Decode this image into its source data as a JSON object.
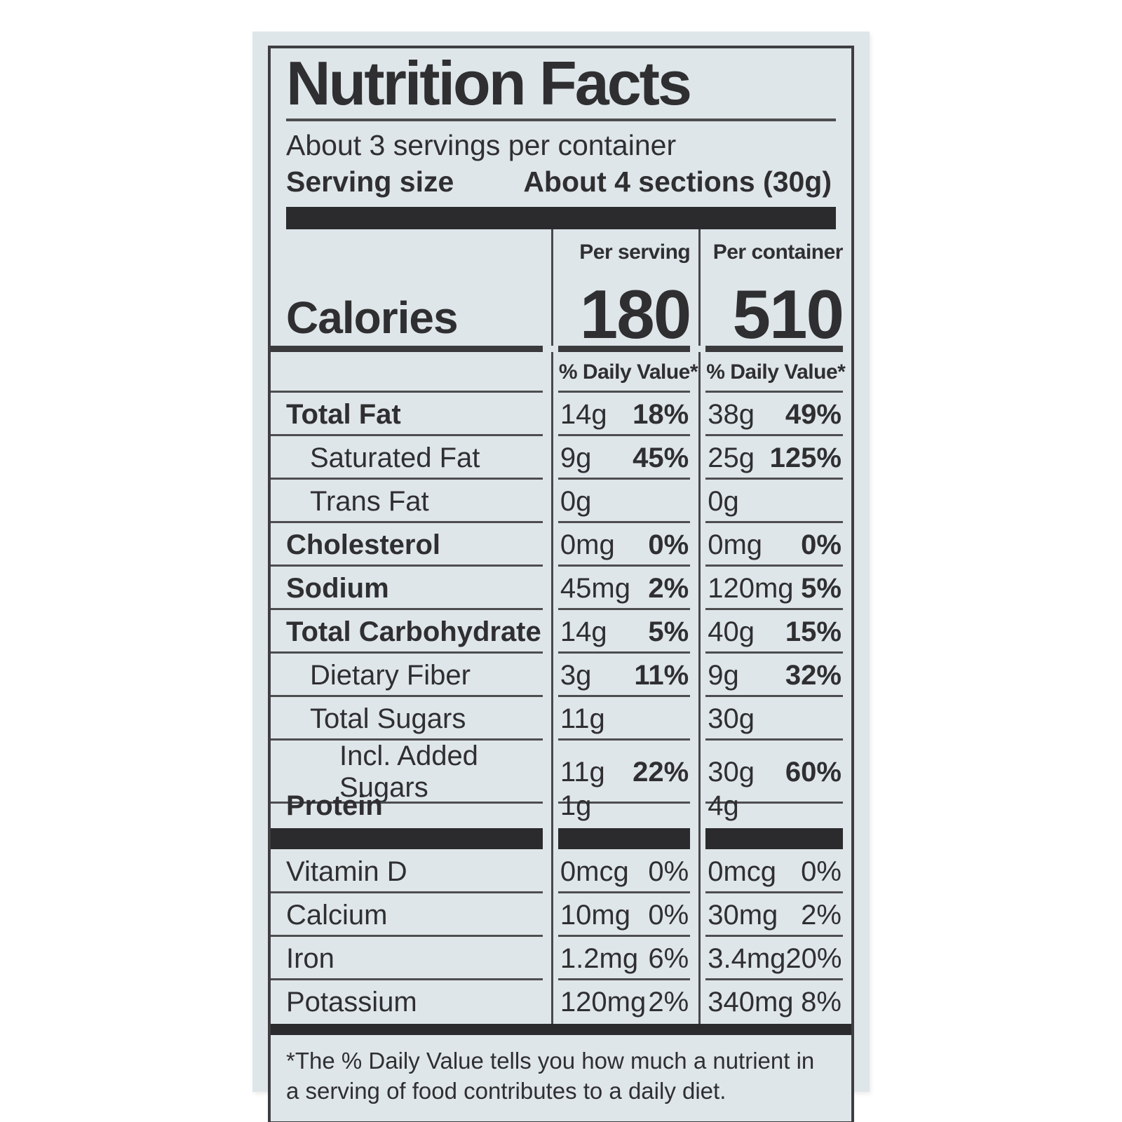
{
  "label": {
    "title": "Nutrition Facts",
    "servings_per_container": "About 3 servings per container",
    "serving_size_label": "Serving size",
    "serving_size_value": "About 4 sections (30g)",
    "calories": {
      "word": "Calories",
      "per_serving_header": "Per serving",
      "per_container_header": "Per container",
      "per_serving_value": "180",
      "per_container_value": "510"
    },
    "daily_value_header_serving": "% Daily Value*",
    "daily_value_header_container": "% Daily Value*",
    "rows": [
      {
        "name": "Total Fat",
        "ps_amt": "14g",
        "ps_dv": "18%",
        "pc_amt": "38g",
        "pc_dv": "49%"
      },
      {
        "name": "Saturated Fat",
        "ps_amt": "9g",
        "ps_dv": "45%",
        "pc_amt": "25g",
        "pc_dv": "125%"
      },
      {
        "name": "Trans Fat",
        "ps_amt": "0g",
        "ps_dv": "",
        "pc_amt": "0g",
        "pc_dv": ""
      },
      {
        "name": "Cholesterol",
        "ps_amt": "0mg",
        "ps_dv": "0%",
        "pc_amt": "0mg",
        "pc_dv": "0%"
      },
      {
        "name": "Sodium",
        "ps_amt": "45mg",
        "ps_dv": "2%",
        "pc_amt": "120mg",
        "pc_dv": "5%"
      },
      {
        "name": "Total Carbohydrate",
        "ps_amt": "14g",
        "ps_dv": "5%",
        "pc_amt": "40g",
        "pc_dv": "15%"
      },
      {
        "name": "Dietary Fiber",
        "ps_amt": "3g",
        "ps_dv": "11%",
        "pc_amt": "9g",
        "pc_dv": "32%"
      },
      {
        "name": "Total Sugars",
        "ps_amt": "11g",
        "ps_dv": "",
        "pc_amt": "30g",
        "pc_dv": ""
      },
      {
        "name": "Incl. Added Sugars",
        "ps_amt": "11g",
        "ps_dv": "22%",
        "pc_amt": "30g",
        "pc_dv": "60%"
      },
      {
        "name": "Protein",
        "ps_amt": "1g",
        "ps_dv": "",
        "pc_amt": "4g",
        "pc_dv": ""
      },
      {
        "name": "Vitamin D",
        "ps_amt": "0mcg",
        "ps_dv": "0%",
        "pc_amt": "0mcg",
        "pc_dv": "0%"
      },
      {
        "name": "Calcium",
        "ps_amt": "10mg",
        "ps_dv": "0%",
        "pc_amt": "30mg",
        "pc_dv": "2%"
      },
      {
        "name": "Iron",
        "ps_amt": "1.2mg",
        "ps_dv": "6%",
        "pc_amt": "3.4mg",
        "pc_dv": "20%"
      },
      {
        "name": "Potassium",
        "ps_amt": "120mg",
        "ps_dv": "2%",
        "pc_amt": "340mg",
        "pc_dv": "8%"
      }
    ],
    "footnote": "*The % Daily Value tells you how much a nutrient in a serving of food contributes to a daily diet."
  },
  "colors": {
    "paper": "#dfe6ea",
    "ink": "#2f2f31",
    "bar": "#2b2b2d",
    "hairline": "#4d4d4f",
    "border": "#3e3e42",
    "page_background": "#ffffff"
  }
}
